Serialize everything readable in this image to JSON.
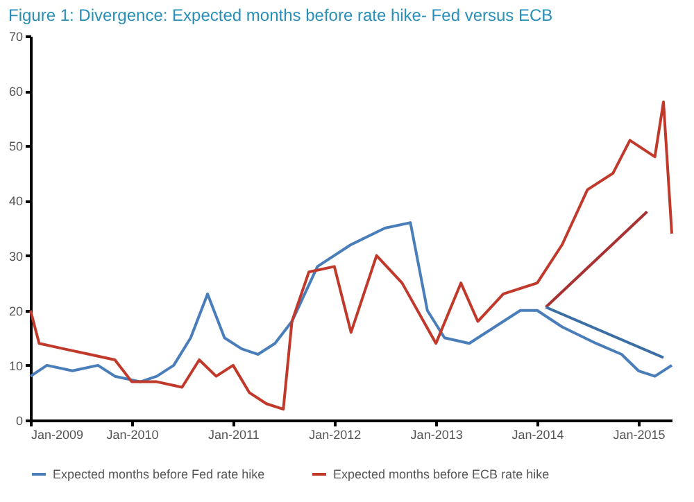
{
  "chart_data": {
    "type": "line",
    "title": "Figure 1: Divergence: Expected months before rate hike- Fed versus ECB",
    "x": [
      "2009-01",
      "2009-03",
      "2009-06",
      "2009-09",
      "2009-11",
      "2010-02",
      "2010-04",
      "2010-06",
      "2010-08",
      "2010-10",
      "2010-12",
      "2011-02",
      "2011-04",
      "2011-06",
      "2011-08",
      "2011-11",
      "2012-03",
      "2012-07",
      "2012-10",
      "2012-12",
      "2013-02",
      "2013-05",
      "2013-08",
      "2013-11",
      "2014-01",
      "2014-04",
      "2014-08",
      "2014-11",
      "2015-01",
      "2015-03",
      "2015-05"
    ],
    "series": [
      {
        "name": "Expected months before Fed rate hike",
        "color": "#4a7ebb",
        "values": [
          8,
          10,
          9,
          10,
          8,
          7,
          8,
          10,
          15,
          23,
          15,
          13,
          12,
          14,
          18,
          28,
          32,
          35,
          36,
          20,
          15,
          14,
          17,
          20,
          20,
          17,
          14,
          12,
          9,
          8,
          10
        ]
      },
      {
        "name": "Expected months before ECB rate hike",
        "color": "#c0392b",
        "x": [
          "2009-01",
          "2009-02",
          "2009-05",
          "2009-08",
          "2009-11",
          "2010-01",
          "2010-04",
          "2010-07",
          "2010-09",
          "2010-11",
          "2011-01",
          "2011-03",
          "2011-05",
          "2011-07",
          "2011-08",
          "2011-10",
          "2012-01",
          "2012-03",
          "2012-06",
          "2012-09",
          "2013-01",
          "2013-04",
          "2013-06",
          "2013-09",
          "2014-01",
          "2014-04",
          "2014-07",
          "2014-10",
          "2014-12",
          "2015-03",
          "2015-04",
          "2015-05"
        ],
        "values": [
          20,
          14,
          13,
          12,
          11,
          7,
          7,
          6,
          11,
          8,
          10,
          5,
          3,
          2,
          18,
          27,
          28,
          16,
          30,
          25,
          14,
          25,
          18,
          23,
          25,
          32,
          42,
          45,
          51,
          48,
          58,
          34
        ]
      },
      {
        "type": "line",
        "color": "#a83232",
        "x": [
          "2014-02",
          "2015-02"
        ],
        "values": [
          20.6,
          38
        ]
      },
      {
        "type": "line",
        "color": "#3a6ea5",
        "x": [
          "2014-02",
          "2015-04"
        ],
        "values": [
          20.6,
          11.4
        ]
      }
    ],
    "xlim": [
      "2009-01",
      "2015-05"
    ],
    "xticks": [
      {
        "value": "2009-01",
        "label": "Jan-2009"
      },
      {
        "value": "2010-01",
        "label": "Jan-2010"
      },
      {
        "value": "2011-01",
        "label": "Jan-2011"
      },
      {
        "value": "2012-01",
        "label": "Jan-2012"
      },
      {
        "value": "2013-01",
        "label": "Jan-2013"
      },
      {
        "value": "2014-01",
        "label": "Jan-2014"
      },
      {
        "value": "2015-01",
        "label": "Jan-2015"
      }
    ],
    "ylim": [
      0,
      70
    ],
    "yticks": [
      0,
      10,
      20,
      30,
      40,
      50,
      60,
      70
    ],
    "grid": false,
    "legend": "bottom",
    "marker": "none",
    "line_style": "solid"
  }
}
